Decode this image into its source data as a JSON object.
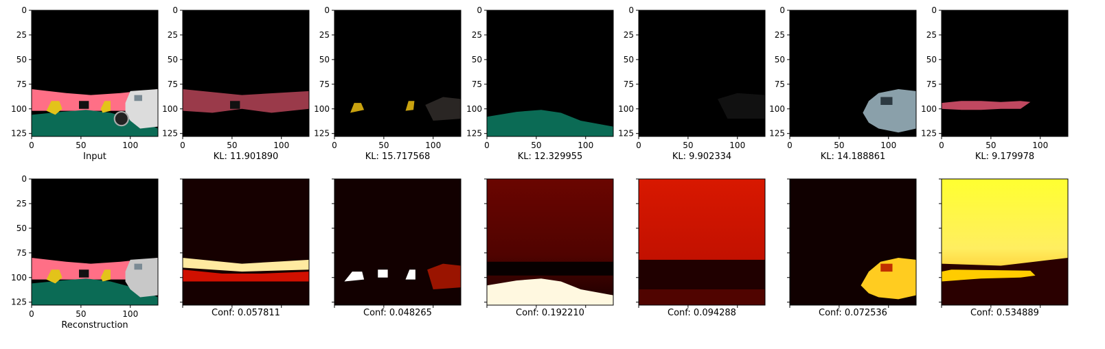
{
  "figure": {
    "top_row_x_labels": [
      "Input",
      "KL: 11.901890",
      "KL: 15.717568",
      "KL: 12.329955",
      "KL: 9.902334",
      "KL: 14.188861",
      "KL: 9.179978"
    ],
    "bottom_row_x_labels": [
      "Reconstruction",
      "Conf: 0.057811",
      "Conf: 0.048265",
      "Conf: 0.192210",
      "Conf: 0.094288",
      "Conf: 0.072536",
      "Conf: 0.534889"
    ],
    "x_ticks": [
      0,
      50,
      100
    ],
    "y_ticks": [
      0,
      25,
      50,
      75,
      100,
      125
    ],
    "image_size": 128
  },
  "chart_data": [
    {
      "type": "heatmap",
      "title": "",
      "xlabel": "Input",
      "x": [
        0,
        128
      ],
      "y": [
        0,
        128
      ],
      "panel": "input",
      "colors": {
        "background": "#000000",
        "wall": "#ff6f86",
        "ground": "#0b6b55",
        "objects": "#e3c31a",
        "vehicle": "#d8d8d8"
      }
    },
    {
      "type": "heatmap",
      "xlabel": "KL: 11.901890",
      "kl": 11.90189,
      "slot": 1
    },
    {
      "type": "heatmap",
      "xlabel": "KL: 15.717568",
      "kl": 15.717568,
      "slot": 2
    },
    {
      "type": "heatmap",
      "xlabel": "KL: 12.329955",
      "kl": 12.329955,
      "slot": 3
    },
    {
      "type": "heatmap",
      "xlabel": "KL: 9.902334",
      "kl": 9.902334,
      "slot": 4
    },
    {
      "type": "heatmap",
      "xlabel": "KL: 14.188861",
      "kl": 14.188861,
      "slot": 5
    },
    {
      "type": "heatmap",
      "xlabel": "KL: 9.179978",
      "kl": 9.179978,
      "slot": 6
    },
    {
      "type": "heatmap",
      "xlabel": "Reconstruction",
      "panel": "reconstruction"
    },
    {
      "type": "heatmap",
      "xlabel": "Conf: 0.057811",
      "conf": 0.057811,
      "colormap": "hot"
    },
    {
      "type": "heatmap",
      "xlabel": "Conf: 0.048265",
      "conf": 0.048265,
      "colormap": "hot"
    },
    {
      "type": "heatmap",
      "xlabel": "Conf: 0.192210",
      "conf": 0.19221,
      "colormap": "hot"
    },
    {
      "type": "heatmap",
      "xlabel": "Conf: 0.094288",
      "conf": 0.094288,
      "colormap": "hot"
    },
    {
      "type": "heatmap",
      "xlabel": "Conf: 0.072536",
      "conf": 0.072536,
      "colormap": "hot"
    },
    {
      "type": "heatmap",
      "xlabel": "Conf: 0.534889",
      "conf": 0.534889,
      "colormap": "hot"
    }
  ]
}
